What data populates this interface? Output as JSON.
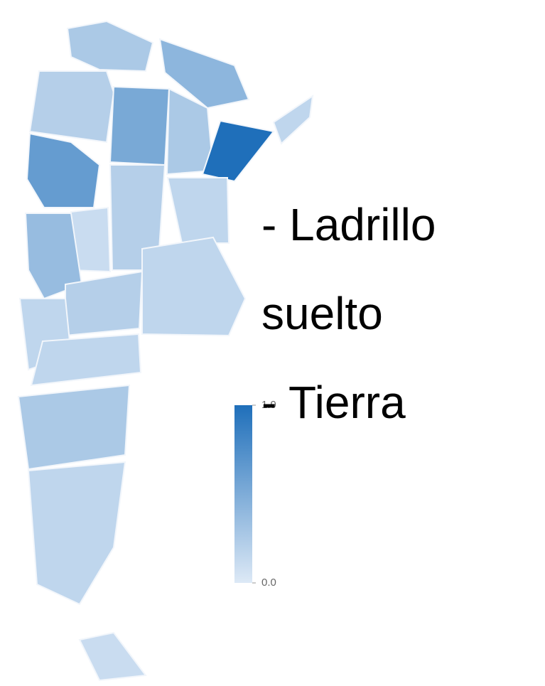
{
  "map": {
    "type": "choropleth",
    "regions": [
      0.5,
      0.4,
      0.8,
      1.0,
      0.5,
      1.9,
      0.3,
      1.2,
      0.2,
      0.4,
      0.3,
      0.7,
      0.3,
      0.4,
      0.3,
      0.3,
      0.5,
      0.3,
      0.2
    ],
    "colorscale": [
      "#dde9f6",
      "#1f6fba"
    ],
    "legend_ticks": [
      {
        "value": 0,
        "label": "0.0"
      },
      1.9
    ]
  },
  "overlay_text": [
    "- Ladrillo",
    "suelto",
    "- Tierra"
  ]
}
